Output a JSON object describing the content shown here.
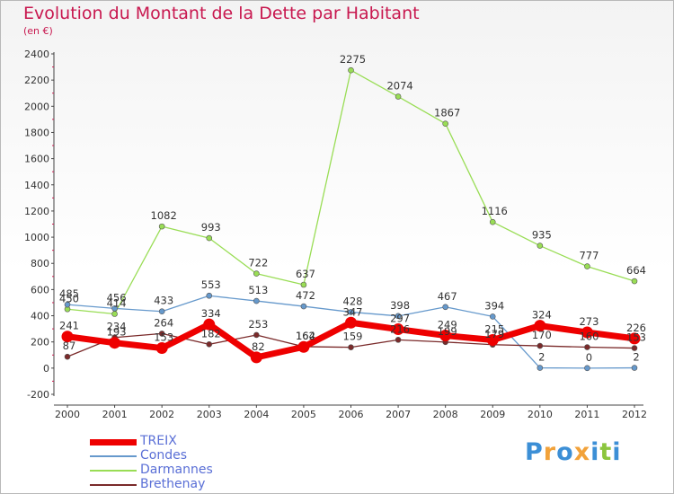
{
  "chart_data": {
    "type": "line",
    "title": "Evolution du Montant de la Dette par Habitant",
    "subtitle": "(en €)",
    "x": [
      "2000",
      "2001",
      "2002",
      "2003",
      "2004",
      "2005",
      "2006",
      "2007",
      "2008",
      "2009",
      "2010",
      "2011",
      "2012"
    ],
    "ylim": [
      -200,
      2400
    ],
    "yticks": [
      -200,
      0,
      200,
      400,
      600,
      800,
      1000,
      1200,
      1400,
      1600,
      1800,
      2000,
      2200,
      2400
    ],
    "grid": false,
    "legend_position": "bottom-left",
    "series": [
      {
        "name": "Darmannes",
        "color": "#99dd55",
        "values": [
          450,
          414,
          1082,
          993,
          722,
          637,
          2275,
          2074,
          1867,
          1116,
          935,
          777,
          664
        ]
      },
      {
        "name": "Condes",
        "color": "#6699cc",
        "values": [
          485,
          456,
          433,
          553,
          513,
          472,
          428,
          398,
          467,
          394,
          2,
          0,
          2
        ]
      },
      {
        "name": "Brethenay",
        "color": "#7a2a2a",
        "values": [
          87,
          234,
          264,
          182,
          253,
          164,
          159,
          216,
          199,
          179,
          170,
          160,
          153
        ]
      },
      {
        "name": "TREIX",
        "color": "#ee0000",
        "values": [
          241,
          193,
          153,
          334,
          82,
          162,
          347,
          297,
          249,
          215,
          324,
          273,
          226
        ]
      }
    ]
  },
  "legend_order": [
    "TREIX",
    "Condes",
    "Darmannes",
    "Brethenay"
  ],
  "logo": {
    "letters": [
      "P",
      "r",
      "o",
      "x",
      "i",
      "t",
      "i"
    ],
    "colors": [
      "#3c8fd6",
      "#f2a23a",
      "#3c8fd6",
      "#f2a23a",
      "#3c8fd6",
      "#8cc63e",
      "#3c8fd6"
    ]
  }
}
